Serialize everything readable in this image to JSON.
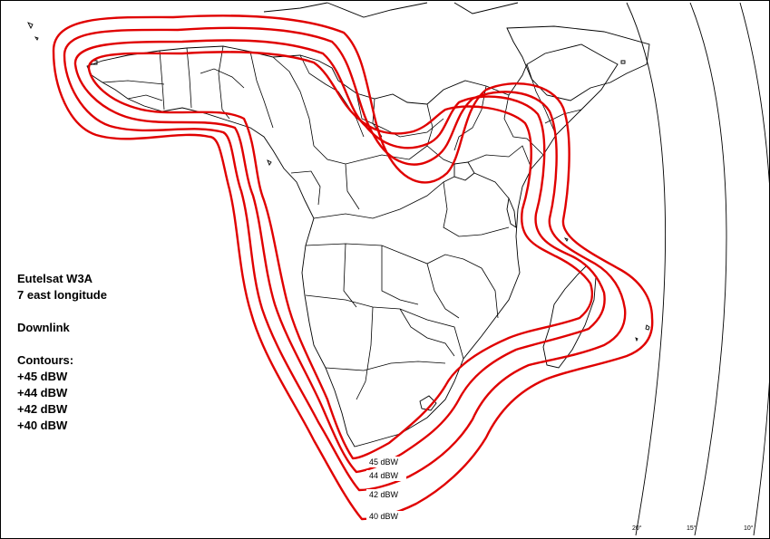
{
  "legend": {
    "satellite": "Eutelsat W3A",
    "position": "7 east longitude",
    "link": "Downlink",
    "contours_title": "Contours:",
    "contours": [
      "+45 dBW",
      "+44 dBW",
      "+42 dBW",
      "+40 dBW"
    ]
  },
  "contour_labels": [
    "45 dBW",
    "44 dBW",
    "42 dBW",
    "40 dBW"
  ],
  "contour_levels_dbw": [
    45,
    44,
    42,
    40
  ],
  "contour_color": "#e00000",
  "map_color": "#000000",
  "arc_labels": [
    "20°",
    "15°",
    "10°"
  ]
}
